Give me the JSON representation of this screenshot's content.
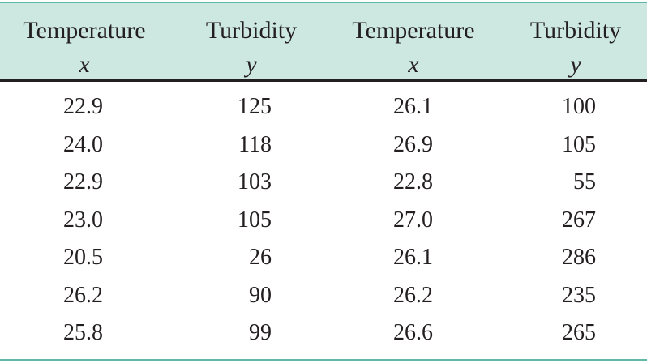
{
  "table": {
    "columns": [
      {
        "name": "Temperature",
        "var": "x"
      },
      {
        "name": "Turbidity",
        "var": "y"
      },
      {
        "name": "Temperature",
        "var": "x"
      },
      {
        "name": "Turbidity",
        "var": "y"
      }
    ],
    "rows": [
      [
        "22.9",
        "125",
        "26.1",
        "100"
      ],
      [
        "24.0",
        "118",
        "26.9",
        "105"
      ],
      [
        "22.9",
        "103",
        "22.8",
        "55"
      ],
      [
        "23.0",
        "105",
        "27.0",
        "267"
      ],
      [
        "20.5",
        "26",
        "26.1",
        "286"
      ],
      [
        "26.2",
        "90",
        "26.2",
        "235"
      ],
      [
        "25.8",
        "99",
        "26.6",
        "265"
      ]
    ]
  },
  "colors": {
    "header_background": "#cde7e1",
    "rule_accent": "#5fb8a8",
    "text": "#231f20"
  }
}
